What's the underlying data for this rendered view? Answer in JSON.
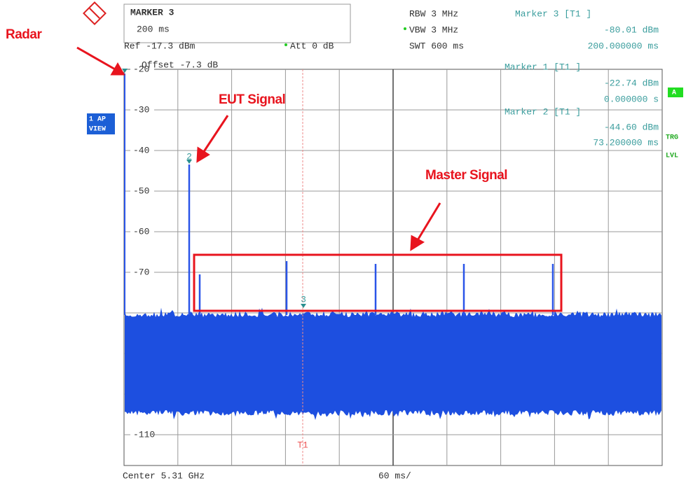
{
  "header": {
    "marker_title": "MARKER 3",
    "marker_time": "200 ms",
    "ref": "Ref -17.3 dBm",
    "att": "Att  0 dB",
    "rbw": "RBW 3 MHz",
    "vbw": "VBW 3 MHz",
    "swt": "SWT 600 ms",
    "offset": "Offset -7.3 dB"
  },
  "markers": [
    {
      "label": "Marker 3 [T1 ]",
      "level": "-80.01 dBm",
      "time": "200.000000 ms"
    },
    {
      "label": "Marker 1 [T1 ]",
      "level": "-22.74 dBm",
      "time": "0.000000 s"
    },
    {
      "label": "Marker 2 [T1 ]",
      "level": "-44.60 dBm",
      "time": "73.200000 ms"
    }
  ],
  "side": {
    "trace": "1 AP",
    "view": "VIEW",
    "a": "A",
    "trg": "TRG",
    "lvl": "LVL"
  },
  "y_labels": [
    "-20",
    "-30",
    "-40",
    "-50",
    "-60",
    "-70",
    "-110"
  ],
  "footer": {
    "center": "Center 5.31 GHz",
    "span": "60 ms/"
  },
  "trace_labels": {
    "t1": "T1",
    "m2": "2",
    "m3": "3"
  },
  "annotations": {
    "radar": "Radar",
    "eut": "EUT Signal",
    "master": "Master Signal"
  }
}
